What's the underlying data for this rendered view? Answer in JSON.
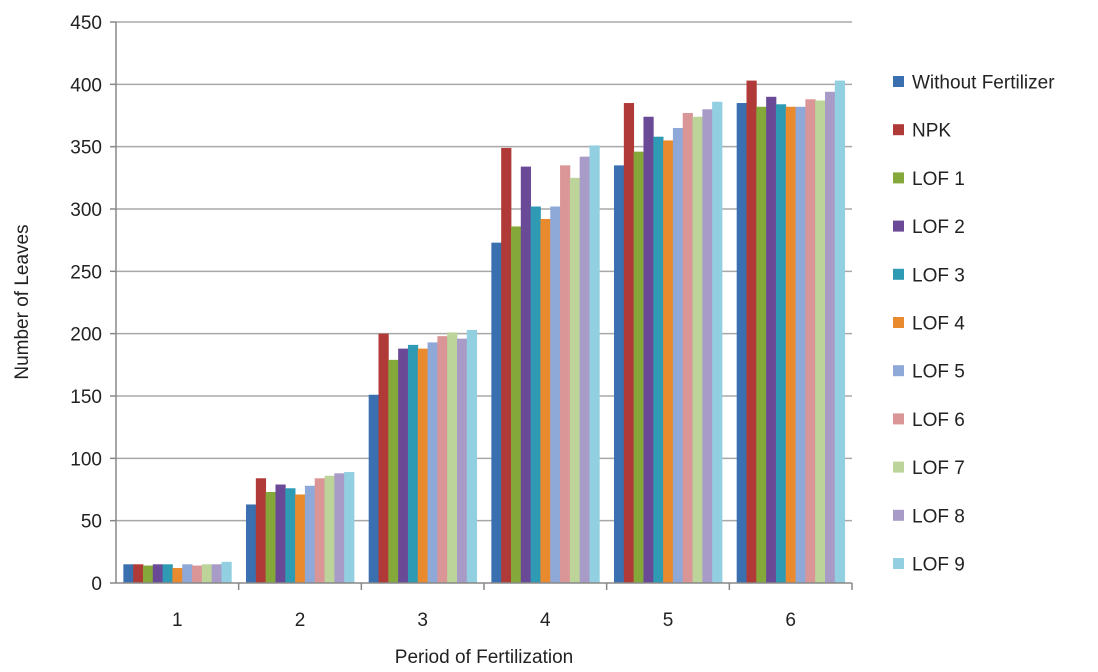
{
  "chart_data": {
    "type": "bar",
    "title": "",
    "xlabel": "Period of Fertilization",
    "ylabel": "Number of Leaves",
    "categories": [
      "1",
      "2",
      "3",
      "4",
      "5",
      "6"
    ],
    "ylim": [
      0,
      450
    ],
    "yticks": [
      0,
      50,
      100,
      150,
      200,
      250,
      300,
      350,
      400,
      450
    ],
    "grid": "horizontal",
    "legend_position": "right",
    "series": [
      {
        "name": "Without Fertilizer",
        "color": "#3a6fb0",
        "values": [
          15,
          63,
          151,
          273,
          335,
          385
        ]
      },
      {
        "name": "NPK",
        "color": "#b03a37",
        "values": [
          15,
          84,
          200,
          349,
          385,
          403
        ]
      },
      {
        "name": "LOF 1",
        "color": "#84a83a",
        "values": [
          14,
          73,
          179,
          286,
          346,
          382
        ]
      },
      {
        "name": "LOF 2",
        "color": "#6a4a96",
        "values": [
          15,
          79,
          188,
          334,
          374,
          390
        ]
      },
      {
        "name": "LOF 3",
        "color": "#2f9ab4",
        "values": [
          15,
          76,
          191,
          302,
          358,
          384
        ]
      },
      {
        "name": "LOF 4",
        "color": "#ea8a2e",
        "values": [
          12,
          71,
          188,
          292,
          355,
          382
        ]
      },
      {
        "name": "LOF 5",
        "color": "#8ea9d8",
        "values": [
          15,
          78,
          193,
          302,
          365,
          382
        ]
      },
      {
        "name": "LOF 6",
        "color": "#da9696",
        "values": [
          14,
          84,
          198,
          335,
          377,
          388
        ]
      },
      {
        "name": "LOF 7",
        "color": "#bcd49a",
        "values": [
          15,
          86,
          201,
          325,
          374,
          387
        ]
      },
      {
        "name": "LOF 8",
        "color": "#a99bc8",
        "values": [
          15,
          88,
          196,
          342,
          380,
          394
        ]
      },
      {
        "name": "LOF 9",
        "color": "#92cfe0",
        "values": [
          17,
          89,
          203,
          351,
          386,
          403
        ]
      }
    ]
  }
}
